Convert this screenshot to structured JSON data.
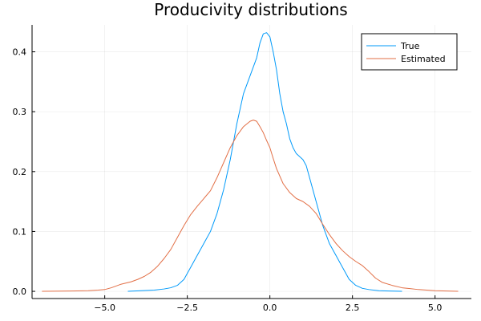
{
  "chart_data": {
    "type": "line",
    "title": "Producivity distributions",
    "xlabel": "",
    "ylabel": "",
    "xlim": [
      -7.2,
      6.1
    ],
    "ylim": [
      -0.012,
      0.445
    ],
    "xticks": [
      -5.0,
      -2.5,
      0.0,
      2.5,
      5.0
    ],
    "xtick_labels": [
      "−5.0",
      "−2.5",
      "0.0",
      "2.5",
      "5.0"
    ],
    "yticks": [
      0.0,
      0.1,
      0.2,
      0.3,
      0.4
    ],
    "ytick_labels": [
      "0.0",
      "0.1",
      "0.2",
      "0.3",
      "0.4"
    ],
    "grid": true,
    "legend_position": "top-right",
    "series": [
      {
        "name": "True",
        "color": "#009AFA",
        "x": [
          -4.3,
          -3.9,
          -3.5,
          -3.2,
          -3.0,
          -2.8,
          -2.6,
          -2.5,
          -2.4,
          -2.2,
          -2.0,
          -1.8,
          -1.6,
          -1.4,
          -1.2,
          -1.0,
          -0.8,
          -0.6,
          -0.4,
          -0.3,
          -0.2,
          -0.1,
          0.0,
          0.1,
          0.2,
          0.3,
          0.4,
          0.5,
          0.6,
          0.7,
          0.8,
          0.9,
          1.0,
          1.1,
          1.2,
          1.4,
          1.6,
          1.8,
          2.0,
          2.2,
          2.4,
          2.6,
          2.8,
          3.0,
          3.3,
          3.6,
          4.0
        ],
        "y": [
          0.0,
          0.001,
          0.002,
          0.004,
          0.006,
          0.01,
          0.02,
          0.03,
          0.04,
          0.06,
          0.08,
          0.1,
          0.13,
          0.17,
          0.22,
          0.28,
          0.33,
          0.36,
          0.39,
          0.415,
          0.43,
          0.432,
          0.425,
          0.4,
          0.37,
          0.33,
          0.3,
          0.28,
          0.255,
          0.24,
          0.23,
          0.225,
          0.22,
          0.21,
          0.19,
          0.15,
          0.11,
          0.08,
          0.06,
          0.04,
          0.02,
          0.01,
          0.005,
          0.003,
          0.001,
          0.0005,
          0.0
        ]
      },
      {
        "name": "Estimated",
        "color": "#E26F46",
        "x": [
          -6.9,
          -6.0,
          -5.5,
          -5.2,
          -5.0,
          -4.8,
          -4.5,
          -4.2,
          -4.0,
          -3.8,
          -3.6,
          -3.4,
          -3.2,
          -3.0,
          -2.8,
          -2.6,
          -2.4,
          -2.2,
          -2.0,
          -1.8,
          -1.6,
          -1.4,
          -1.2,
          -1.0,
          -0.8,
          -0.6,
          -0.5,
          -0.4,
          -0.3,
          -0.2,
          -0.1,
          0.0,
          0.1,
          0.2,
          0.4,
          0.6,
          0.8,
          1.0,
          1.2,
          1.4,
          1.6,
          1.8,
          2.0,
          2.2,
          2.4,
          2.6,
          2.8,
          3.0,
          3.2,
          3.4,
          3.7,
          4.0,
          4.5,
          5.0,
          5.7
        ],
        "y": [
          0.0,
          0.0005,
          0.001,
          0.002,
          0.003,
          0.006,
          0.012,
          0.016,
          0.02,
          0.025,
          0.032,
          0.042,
          0.055,
          0.07,
          0.09,
          0.11,
          0.128,
          0.142,
          0.155,
          0.168,
          0.19,
          0.215,
          0.24,
          0.26,
          0.275,
          0.284,
          0.286,
          0.284,
          0.275,
          0.265,
          0.252,
          0.24,
          0.222,
          0.205,
          0.18,
          0.165,
          0.155,
          0.15,
          0.142,
          0.13,
          0.112,
          0.095,
          0.08,
          0.068,
          0.058,
          0.05,
          0.043,
          0.033,
          0.022,
          0.015,
          0.01,
          0.006,
          0.003,
          0.001,
          0.0
        ]
      }
    ]
  }
}
